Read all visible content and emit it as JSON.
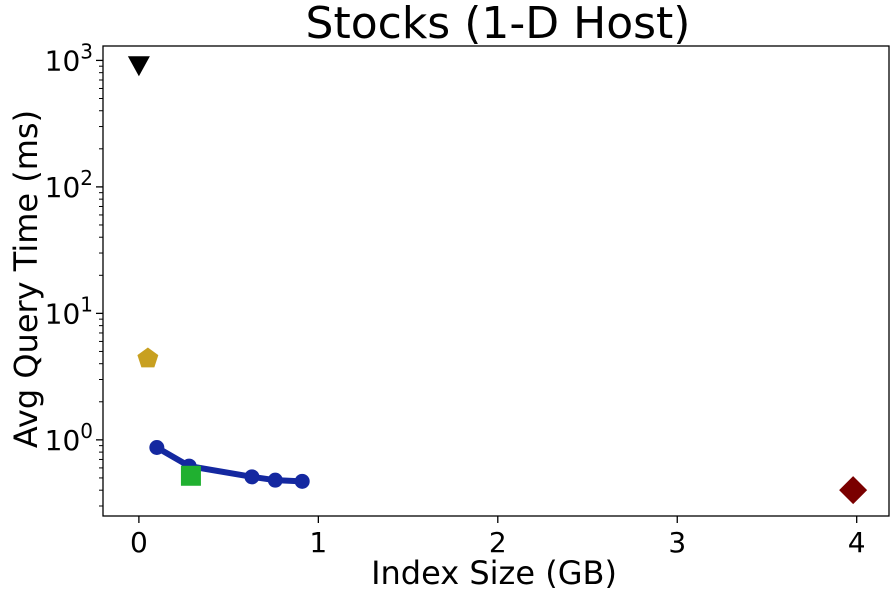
{
  "chart_data": {
    "type": "scatter",
    "title": "Stocks (1-D Host)",
    "xlabel": "Index Size (GB)",
    "ylabel": "Avg Query Time (ms)",
    "xlim": [
      -0.2,
      4.18
    ],
    "ylim": [
      0.25,
      1300
    ],
    "yscale": "log",
    "grid": false,
    "legend": "none",
    "x_ticks": [
      {
        "value": 0,
        "label": "0"
      },
      {
        "value": 1,
        "label": "1"
      },
      {
        "value": 2,
        "label": "2"
      },
      {
        "value": 3,
        "label": "3"
      },
      {
        "value": 4,
        "label": "4"
      }
    ],
    "y_ticks": [
      {
        "value": 1,
        "base": "10",
        "exp": "0"
      },
      {
        "value": 10,
        "base": "10",
        "exp": "1"
      },
      {
        "value": 100,
        "base": "10",
        "exp": "2"
      },
      {
        "value": 1000,
        "base": "10",
        "exp": "3"
      }
    ],
    "series": [
      {
        "marker": "circle-line",
        "color": "#1428a0",
        "points": [
          {
            "x": 0.1,
            "y": 0.87
          },
          {
            "x": 0.28,
            "y": 0.62
          },
          {
            "x": 0.63,
            "y": 0.51
          },
          {
            "x": 0.76,
            "y": 0.48
          },
          {
            "x": 0.91,
            "y": 0.47
          }
        ]
      },
      {
        "marker": "triangle-down",
        "color": "#000000",
        "points": [
          {
            "x": 0.0,
            "y": 900
          }
        ]
      },
      {
        "marker": "pentagon",
        "color": "#c8a020",
        "points": [
          {
            "x": 0.05,
            "y": 4.4
          }
        ]
      },
      {
        "marker": "square",
        "color": "#20b030",
        "points": [
          {
            "x": 0.29,
            "y": 0.52
          }
        ]
      },
      {
        "marker": "diamond",
        "color": "#7a0000",
        "points": [
          {
            "x": 3.98,
            "y": 0.4
          }
        ]
      }
    ]
  }
}
